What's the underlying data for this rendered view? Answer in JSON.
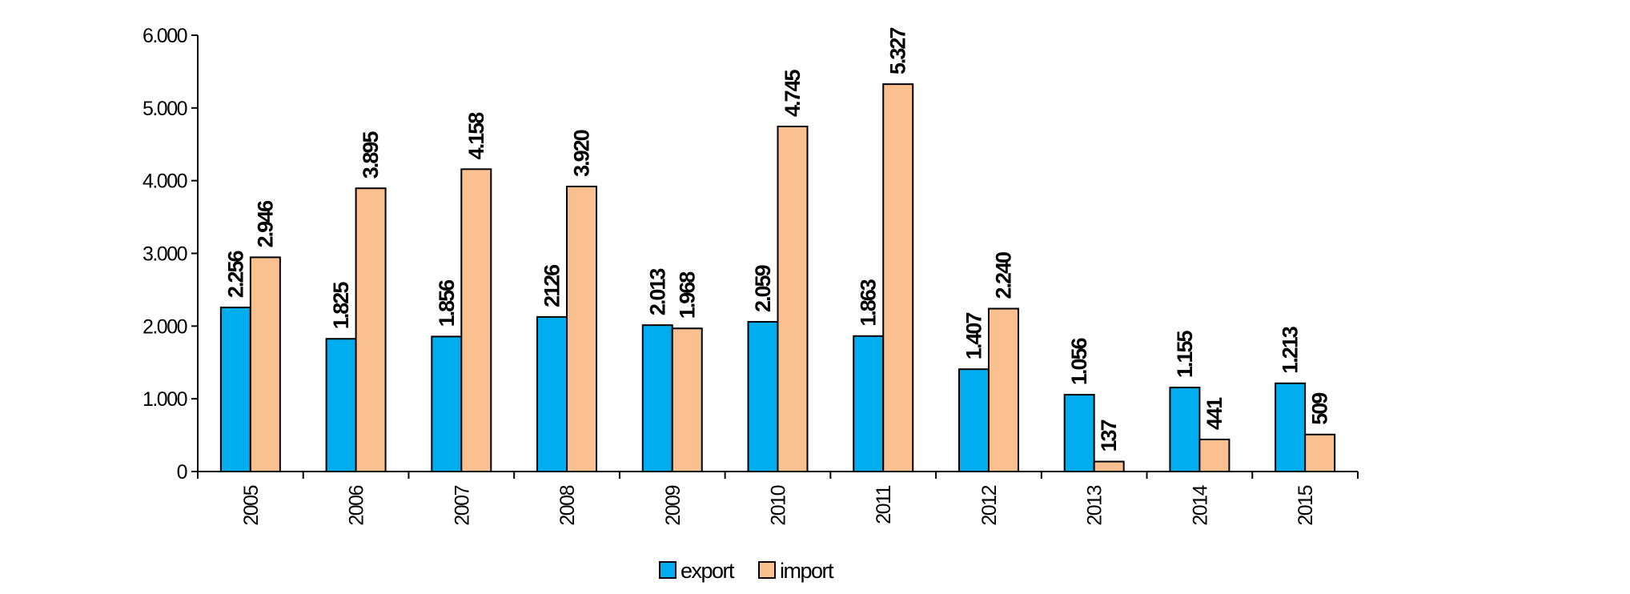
{
  "chart_data": {
    "type": "bar",
    "categories": [
      "2005",
      "2006",
      "2007",
      "2008",
      "2009",
      "2010",
      "2011",
      "2012",
      "2013",
      "2014",
      "2015"
    ],
    "series": [
      {
        "name": "export",
        "color": "#00AEEF",
        "values": [
          2256,
          1825,
          1856,
          2126,
          2013,
          2059,
          1863,
          1407,
          1056,
          1155,
          1213
        ],
        "labels": [
          "2.256",
          "1.825",
          "1.856",
          "2126",
          "2.013",
          "2.059",
          "1.863",
          "1.407",
          "1.056",
          "1.155",
          "1.213"
        ]
      },
      {
        "name": "import",
        "color": "#FAC090",
        "values": [
          2946,
          3895,
          4158,
          3920,
          1968,
          4745,
          5327,
          2240,
          137,
          441,
          509
        ],
        "labels": [
          "2.946",
          "3.895",
          "4.158",
          "3.920",
          "1.968",
          "4.745",
          "5.327",
          "2.240",
          "137",
          "441",
          "509"
        ]
      }
    ],
    "ylim": [
      0,
      6000
    ],
    "yticks": [
      0,
      1000,
      2000,
      3000,
      4000,
      5000,
      6000
    ],
    "ytick_labels": [
      "0",
      "1.000",
      "2.000",
      "3.000",
      "4.000",
      "5.000",
      "6.000"
    ],
    "title": "",
    "xlabel": "",
    "ylabel": "",
    "grid": false,
    "legend_position": "bottom-center"
  }
}
